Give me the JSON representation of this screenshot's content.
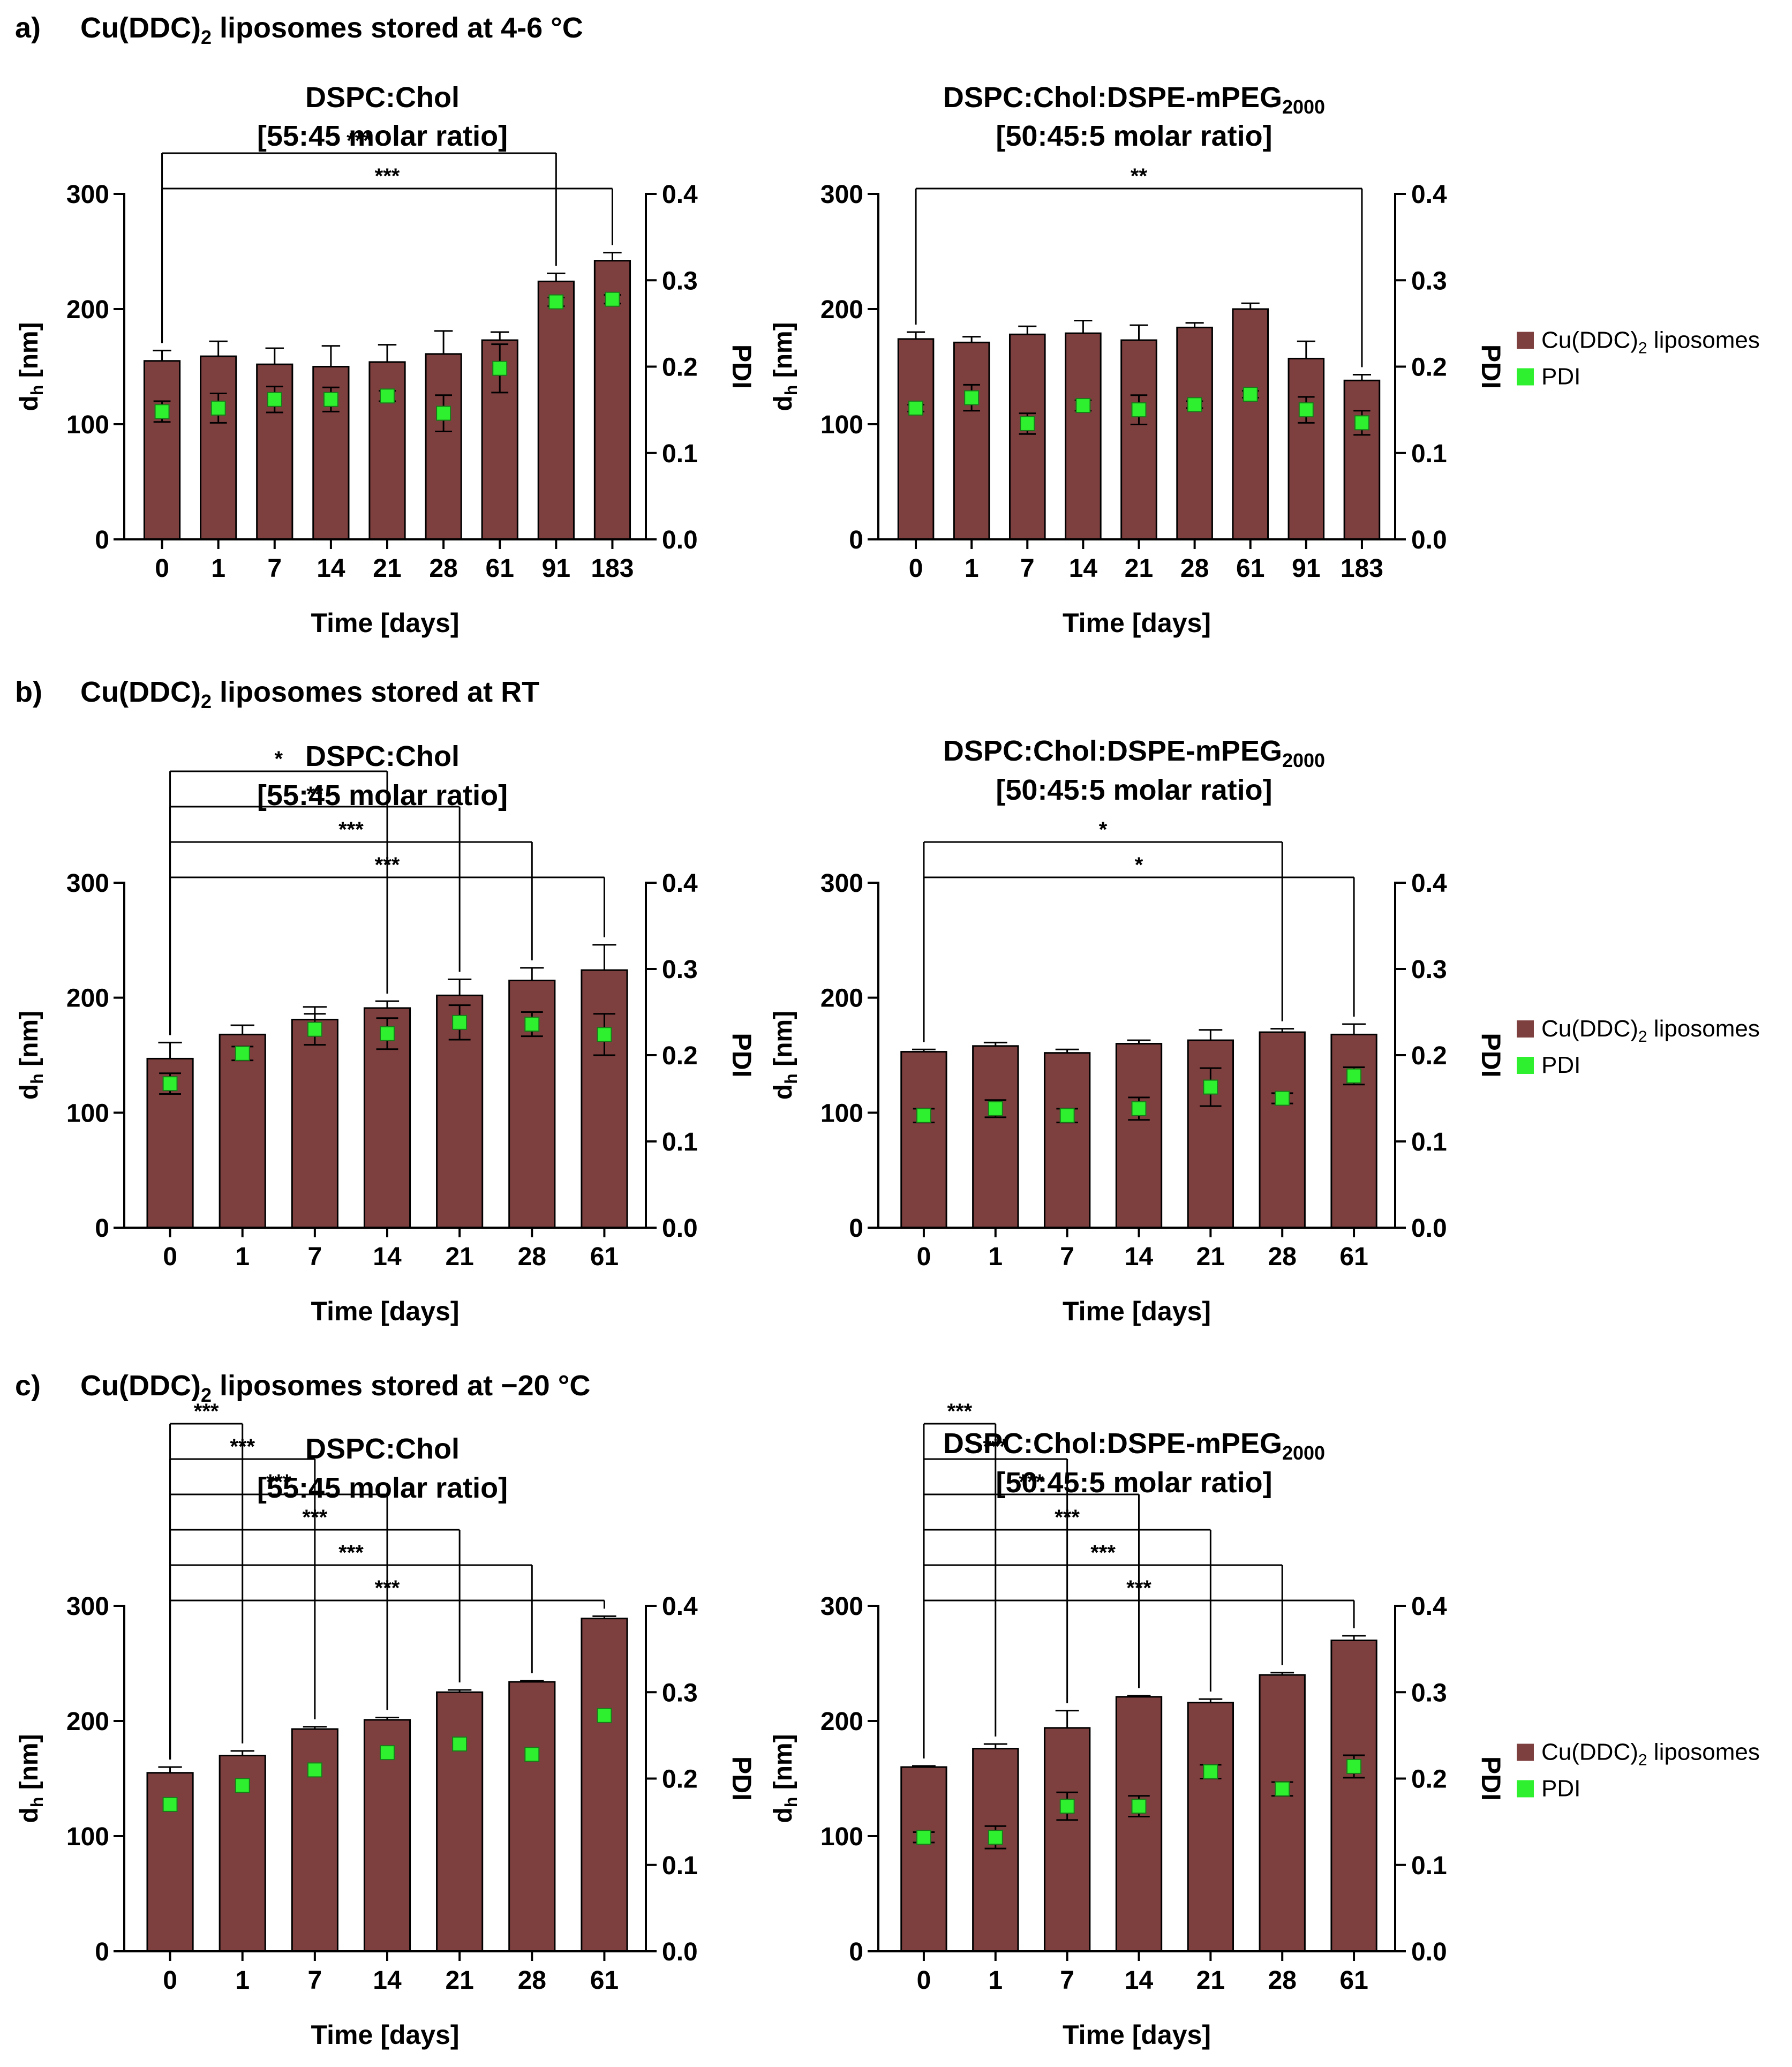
{
  "colors": {
    "bar": "#7e3f3f",
    "pdi": "#2ef02e",
    "axis": "#000000"
  },
  "legend": {
    "bar_prefix": "Cu(DDC)",
    "bar_sub": "2",
    "bar_suffix": " liposomes",
    "pdi": "PDI"
  },
  "rows": [
    {
      "letter": "a)",
      "title_prefix": "Cu(DDC)",
      "title_sub": "2",
      "title_suffix": " liposomes stored at 4-6 °C"
    },
    {
      "letter": "b)",
      "title_prefix": "Cu(DDC)",
      "title_sub": "2",
      "title_suffix": " liposomes stored at RT"
    },
    {
      "letter": "c)",
      "title_prefix": "Cu(DDC)",
      "title_sub": "2",
      "title_suffix": " liposomes stored at −20 °C"
    }
  ],
  "chart_data": [
    {
      "type": "bar",
      "title_line1": "DSPC:Chol",
      "title_sub": "",
      "title_line2": "[55:45 molar ratio]",
      "xlabel": "Time [days]",
      "ylabel_main": "d",
      "ylabel_sub": "h",
      "ylabel_unit": " [nm]",
      "y2label": "PDI",
      "ylim": [
        0,
        300
      ],
      "yticks": [
        "0",
        "100",
        "200",
        "300"
      ],
      "y2lim": [
        0,
        0.4
      ],
      "y2ticks": [
        "0.0",
        "0.1",
        "0.2",
        "0.3",
        "0.4"
      ],
      "categories": [
        "0",
        "1",
        "7",
        "14",
        "21",
        "28",
        "61",
        "91",
        "183"
      ],
      "series": [
        {
          "name": "Cu(DDC)2 liposomes",
          "axis": "left",
          "values": [
            155,
            159,
            152,
            150,
            154,
            161,
            173,
            224,
            242
          ],
          "errors": [
            9,
            13,
            14,
            18,
            15,
            20,
            7,
            7,
            7
          ]
        },
        {
          "name": "PDI",
          "axis": "right",
          "values": [
            0.148,
            0.152,
            0.162,
            0.162,
            0.166,
            0.146,
            0.198,
            0.275,
            0.278
          ],
          "errors": [
            0.012,
            0.017,
            0.015,
            0.014,
            0.006,
            0.021,
            0.028,
            0.005,
            0.005
          ]
        }
      ],
      "significance": [
        {
          "from": "0",
          "to": "91",
          "label": "***"
        },
        {
          "from": "0",
          "to": "183",
          "label": "***"
        }
      ]
    },
    {
      "type": "bar",
      "title_line1": "DSPC:Chol:DSPE-mPEG",
      "title_sub": "2000",
      "title_line2": "[50:45:5 molar ratio]",
      "xlabel": "Time [days]",
      "ylabel_main": "d",
      "ylabel_sub": "h",
      "ylabel_unit": " [nm]",
      "y2label": "PDI",
      "ylim": [
        0,
        300
      ],
      "yticks": [
        "0",
        "100",
        "200",
        "300"
      ],
      "y2lim": [
        0,
        0.4
      ],
      "y2ticks": [
        "0.0",
        "0.1",
        "0.2",
        "0.3",
        "0.4"
      ],
      "categories": [
        "0",
        "1",
        "7",
        "14",
        "21",
        "28",
        "61",
        "91",
        "183"
      ],
      "series": [
        {
          "name": "Cu(DDC)2 liposomes",
          "axis": "left",
          "values": [
            174,
            171,
            178,
            179,
            173,
            184,
            200,
            157,
            138
          ],
          "errors": [
            6,
            5,
            7,
            11,
            13,
            4,
            5,
            15,
            5
          ]
        },
        {
          "name": "PDI",
          "axis": "right",
          "values": [
            0.152,
            0.164,
            0.134,
            0.155,
            0.15,
            0.156,
            0.168,
            0.15,
            0.135
          ],
          "errors": [
            0.004,
            0.015,
            0.012,
            0.006,
            0.017,
            0.004,
            0.004,
            0.015,
            0.014
          ]
        }
      ],
      "significance": [
        {
          "from": "0",
          "to": "183",
          "label": "**"
        }
      ]
    },
    {
      "type": "bar",
      "title_line1": "DSPC:Chol",
      "title_sub": "",
      "title_line2": "[55:45 molar ratio]",
      "xlabel": "Time [days]",
      "ylabel_main": "d",
      "ylabel_sub": "h",
      "ylabel_unit": " [nm]",
      "y2label": "PDI",
      "ylim": [
        0,
        300
      ],
      "yticks": [
        "0",
        "100",
        "200",
        "300"
      ],
      "y2lim": [
        0,
        0.4
      ],
      "y2ticks": [
        "0.0",
        "0.1",
        "0.2",
        "0.3",
        "0.4"
      ],
      "categories": [
        "0",
        "1",
        "7",
        "14",
        "21",
        "28",
        "61"
      ],
      "series": [
        {
          "name": "Cu(DDC)2 liposomes",
          "axis": "left",
          "values": [
            147,
            168,
            181,
            191,
            202,
            215,
            224
          ],
          "errors": [
            14,
            8,
            11,
            6,
            14,
            11,
            22
          ]
        },
        {
          "name": "PDI",
          "axis": "right",
          "values": [
            0.167,
            0.202,
            0.23,
            0.225,
            0.238,
            0.236,
            0.224
          ],
          "errors": [
            0.012,
            0.008,
            0.018,
            0.018,
            0.02,
            0.014,
            0.024
          ]
        }
      ],
      "significance": [
        {
          "from": "0",
          "to": "14",
          "label": "*"
        },
        {
          "from": "0",
          "to": "21",
          "label": "**"
        },
        {
          "from": "0",
          "to": "28",
          "label": "***"
        },
        {
          "from": "0",
          "to": "61",
          "label": "***"
        }
      ]
    },
    {
      "type": "bar",
      "title_line1": "DSPC:Chol:DSPE-mPEG",
      "title_sub": "2000",
      "title_line2": "[50:45:5 molar ratio]",
      "xlabel": "Time [days]",
      "ylabel_main": "d",
      "ylabel_sub": "h",
      "ylabel_unit": " [nm]",
      "y2label": "PDI",
      "ylim": [
        0,
        300
      ],
      "yticks": [
        "0",
        "100",
        "200",
        "300"
      ],
      "y2lim": [
        0,
        0.4
      ],
      "y2ticks": [
        "0.0",
        "0.1",
        "0.2",
        "0.3",
        "0.4"
      ],
      "categories": [
        "0",
        "1",
        "7",
        "14",
        "21",
        "28",
        "61"
      ],
      "series": [
        {
          "name": "Cu(DDC)2 liposomes",
          "axis": "left",
          "values": [
            153,
            158,
            152,
            160,
            163,
            170,
            168
          ],
          "errors": [
            2,
            3,
            3,
            3,
            9,
            3,
            9
          ]
        },
        {
          "name": "PDI",
          "axis": "right",
          "values": [
            0.13,
            0.138,
            0.13,
            0.138,
            0.163,
            0.15,
            0.176
          ],
          "errors": [
            0.008,
            0.01,
            0.008,
            0.013,
            0.022,
            0.006,
            0.01
          ]
        }
      ],
      "significance": [
        {
          "from": "0",
          "to": "28",
          "label": "*"
        },
        {
          "from": "0",
          "to": "61",
          "label": "*"
        }
      ]
    },
    {
      "type": "bar",
      "title_line1": "DSPC:Chol",
      "title_sub": "",
      "title_line2": "[55:45 molar ratio]",
      "xlabel": "Time [days]",
      "ylabel_main": "d",
      "ylabel_sub": "h",
      "ylabel_unit": " [nm]",
      "y2label": "PDI",
      "ylim": [
        0,
        300
      ],
      "yticks": [
        "0",
        "100",
        "200",
        "300"
      ],
      "y2lim": [
        0,
        0.4
      ],
      "y2ticks": [
        "0.0",
        "0.1",
        "0.2",
        "0.3",
        "0.4"
      ],
      "categories": [
        "0",
        "1",
        "7",
        "14",
        "21",
        "28",
        "61"
      ],
      "series": [
        {
          "name": "Cu(DDC)2 liposomes",
          "axis": "left",
          "values": [
            155,
            170,
            193,
            201,
            225,
            234,
            289
          ],
          "errors": [
            5,
            4,
            2,
            2,
            2,
            1,
            2
          ]
        },
        {
          "name": "PDI",
          "axis": "right",
          "values": [
            0.17,
            0.192,
            0.21,
            0.23,
            0.24,
            0.228,
            0.273
          ],
          "errors": [
            0,
            0,
            0,
            0,
            0,
            0,
            0
          ]
        }
      ],
      "significance": [
        {
          "from": "0",
          "to": "1",
          "label": "***"
        },
        {
          "from": "0",
          "to": "7",
          "label": "***"
        },
        {
          "from": "0",
          "to": "14",
          "label": "***"
        },
        {
          "from": "0",
          "to": "21",
          "label": "***"
        },
        {
          "from": "0",
          "to": "28",
          "label": "***"
        },
        {
          "from": "0",
          "to": "61",
          "label": "***"
        }
      ]
    },
    {
      "type": "bar",
      "title_line1": "DSPC:Chol:DSPE-mPEG",
      "title_sub": "2000",
      "title_line2": "[50:45:5 molar ratio]",
      "xlabel": "Time [days]",
      "ylabel_main": "d",
      "ylabel_sub": "h",
      "ylabel_unit": " [nm]",
      "y2label": "PDI",
      "ylim": [
        0,
        300
      ],
      "yticks": [
        "0",
        "100",
        "200",
        "300"
      ],
      "y2lim": [
        0,
        0.4
      ],
      "y2ticks": [
        "0.0",
        "0.1",
        "0.2",
        "0.3",
        "0.4"
      ],
      "categories": [
        "0",
        "1",
        "7",
        "14",
        "21",
        "28",
        "61"
      ],
      "series": [
        {
          "name": "Cu(DDC)2 liposomes",
          "axis": "left",
          "values": [
            160,
            176,
            194,
            221,
            216,
            240,
            270
          ],
          "errors": [
            1,
            4,
            15,
            1,
            3,
            2,
            4
          ]
        },
        {
          "name": "PDI",
          "axis": "right",
          "values": [
            0.132,
            0.132,
            0.168,
            0.168,
            0.208,
            0.188,
            0.214
          ],
          "errors": [
            0.006,
            0.013,
            0.016,
            0.012,
            0.008,
            0.008,
            0.013
          ]
        }
      ],
      "significance": [
        {
          "from": "0",
          "to": "1",
          "label": "***"
        },
        {
          "from": "0",
          "to": "7",
          "label": "***"
        },
        {
          "from": "0",
          "to": "14",
          "label": "***"
        },
        {
          "from": "0",
          "to": "21",
          "label": "***"
        },
        {
          "from": "0",
          "to": "28",
          "label": "***"
        },
        {
          "from": "0",
          "to": "61",
          "label": "***"
        }
      ]
    }
  ]
}
